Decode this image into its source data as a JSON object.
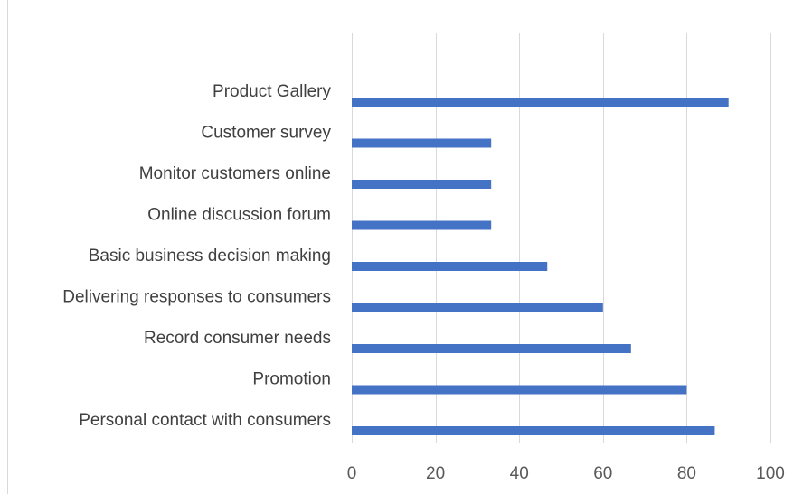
{
  "chart_data": {
    "type": "bar",
    "orientation": "horizontal",
    "title": "",
    "xlabel": "",
    "ylabel": "",
    "categories": [
      "Personal contact with consumers",
      "Promotion",
      "Record consumer needs",
      "Delivering responses to consumers",
      "Basic business decision making",
      "Online discussion forum",
      "Monitor customers online",
      "Customer survey",
      "Product Gallery"
    ],
    "values": [
      86.7,
      80,
      66.7,
      60,
      46.7,
      33.3,
      33.3,
      33.3,
      90
    ],
    "xlim": [
      0,
      100
    ],
    "xticks": [
      0,
      20,
      40,
      60,
      80,
      100
    ],
    "grid": true,
    "legend": "none",
    "bar_color": "#4472c4",
    "grid_color": "#d9d9d9"
  }
}
